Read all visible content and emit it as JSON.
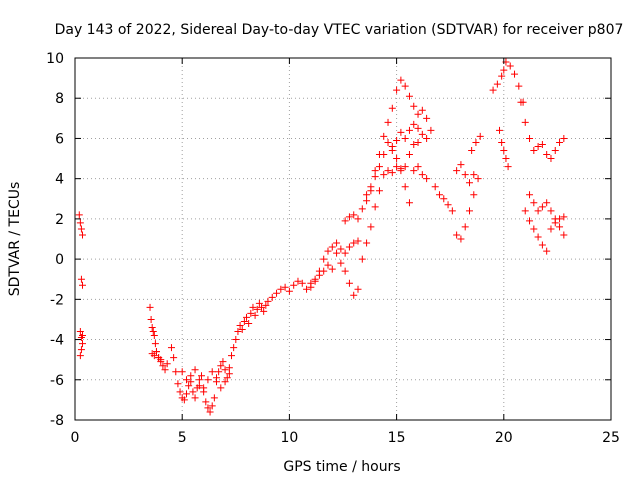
{
  "chart_data": {
    "type": "scatter",
    "title": "Day 143 of 2022, Sidereal Day-to-day VTEC variation (SDTVAR) for receiver p807",
    "xlabel": "GPS time / hours",
    "ylabel": "SDTVAR / TECUs",
    "xlim": [
      0,
      25
    ],
    "ylim": [
      -8,
      10
    ],
    "xticks": [
      "0",
      "5",
      "10",
      "15",
      "20",
      "25"
    ],
    "yticks": [
      "-8",
      "-6",
      "-4",
      "-2",
      "0",
      "2",
      "4",
      "6",
      "8",
      "10"
    ],
    "grid": true,
    "marker": "+",
    "color": "#ff0000",
    "series": [
      {
        "name": "SDTVAR",
        "x": [
          0.2,
          0.25,
          0.3,
          0.35,
          0.3,
          0.35,
          0.25,
          0.3,
          0.35,
          0.3,
          0.25,
          0.35,
          3.5,
          3.55,
          3.6,
          3.65,
          3.7,
          3.75,
          3.8,
          3.9,
          4.0,
          4.1,
          4.2,
          4.3,
          3.6,
          3.7,
          3.8,
          3.9,
          4.0,
          4.5,
          4.6,
          4.7,
          4.8,
          4.9,
          5.0,
          5.1,
          5.2,
          5.3,
          5.4,
          5.5,
          5.6,
          5.7,
          5.8,
          5.9,
          6.0,
          6.1,
          6.2,
          6.3,
          6.4,
          6.5,
          6.6,
          6.7,
          6.8,
          6.9,
          7.0,
          7.1,
          7.2,
          7.3,
          5.0,
          5.2,
          5.4,
          5.6,
          5.8,
          6.0,
          6.2,
          6.4,
          6.6,
          6.8,
          7.0,
          7.2,
          7.4,
          7.5,
          7.6,
          7.7,
          7.8,
          7.9,
          8.0,
          8.1,
          8.2,
          8.3,
          8.4,
          8.5,
          8.6,
          8.7,
          8.8,
          8.9,
          9.0,
          9.2,
          9.4,
          9.6,
          9.8,
          10.0,
          10.2,
          10.4,
          10.6,
          10.8,
          11.0,
          11.2,
          11.4,
          11.6,
          11.8,
          12.0,
          12.2,
          12.4,
          12.6,
          12.8,
          13.0,
          13.2,
          11.0,
          11.2,
          11.4,
          11.6,
          11.8,
          12.0,
          12.2,
          12.4,
          12.6,
          12.8,
          13.0,
          13.2,
          13.4,
          13.6,
          13.8,
          14.0,
          14.2,
          14.4,
          14.6,
          14.8,
          15.0,
          15.2,
          15.4,
          15.6,
          15.8,
          16.0,
          16.2,
          16.4,
          12.6,
          12.8,
          13.0,
          13.2,
          13.4,
          13.6,
          13.8,
          14.0,
          14.2,
          14.4,
          14.6,
          14.8,
          15.0,
          15.2,
          15.4,
          15.6,
          15.8,
          16.0,
          13.6,
          13.8,
          14.0,
          14.2,
          14.4,
          14.6,
          14.8,
          15.0,
          15.2,
          15.4,
          15.6,
          15.8,
          16.0,
          16.2,
          16.4,
          14.8,
          15.0,
          15.2,
          15.4,
          15.6,
          15.8,
          16.0,
          16.2,
          16.4,
          16.6,
          16.8,
          17.0,
          17.2,
          17.4,
          17.6,
          17.8,
          18.0,
          18.2,
          18.4,
          18.6,
          18.8,
          17.8,
          18.0,
          18.2,
          18.4,
          18.6,
          18.5,
          18.7,
          18.9,
          19.5,
          19.7,
          19.9,
          20.0,
          20.1,
          20.3,
          20.5,
          20.7,
          20.9,
          19.8,
          19.9,
          20.0,
          20.1,
          20.2,
          20.8,
          21.0,
          21.2,
          21.4,
          21.6,
          21.8,
          22.0,
          22.2,
          22.4,
          22.6,
          22.8,
          21.0,
          21.2,
          21.4,
          21.6,
          21.8,
          22.0,
          22.2,
          22.4,
          22.6,
          22.8,
          21.2,
          21.4,
          21.6,
          21.8,
          22.0,
          22.2,
          22.4,
          22.6,
          22.8
        ],
        "y": [
          2.2,
          1.8,
          1.5,
          1.2,
          -1.0,
          -1.3,
          -3.6,
          -3.9,
          -4.2,
          -4.5,
          -4.8,
          -3.8,
          -2.4,
          -3.0,
          -3.4,
          -3.6,
          -3.8,
          -4.2,
          -4.6,
          -4.9,
          -5.1,
          -5.3,
          -5.5,
          -5.2,
          -4.7,
          -4.8,
          -4.6,
          -4.9,
          -5.0,
          -4.4,
          -4.9,
          -5.6,
          -6.2,
          -6.6,
          -6.9,
          -7.0,
          -6.7,
          -6.3,
          -6.1,
          -6.6,
          -6.9,
          -6.4,
          -6.0,
          -5.8,
          -6.4,
          -7.1,
          -7.4,
          -7.6,
          -7.3,
          -6.9,
          -6.1,
          -5.6,
          -5.3,
          -5.1,
          -5.5,
          -5.9,
          -5.4,
          -4.8,
          -5.6,
          -6.0,
          -5.8,
          -5.5,
          -6.3,
          -6.6,
          -6.0,
          -5.6,
          -5.9,
          -6.4,
          -6.1,
          -5.7,
          -4.4,
          -4.0,
          -3.6,
          -3.3,
          -3.5,
          -3.1,
          -2.9,
          -3.2,
          -2.7,
          -2.4,
          -2.8,
          -2.5,
          -2.2,
          -2.4,
          -2.6,
          -2.3,
          -2.1,
          -1.9,
          -1.7,
          -1.5,
          -1.4,
          -1.6,
          -1.3,
          -1.1,
          -1.2,
          -1.5,
          -1.2,
          -1.0,
          -0.6,
          0.0,
          0.4,
          0.6,
          0.8,
          0.5,
          0.3,
          0.6,
          0.8,
          0.9,
          -1.4,
          -1.1,
          -0.8,
          -0.6,
          -0.3,
          -0.5,
          0.3,
          -0.2,
          -0.6,
          -1.2,
          -1.8,
          -1.5,
          0.0,
          0.8,
          1.6,
          2.6,
          3.4,
          4.2,
          4.4,
          4.3,
          4.6,
          4.5,
          3.6,
          2.8,
          4.4,
          4.6,
          4.2,
          4.0,
          1.9,
          2.1,
          2.2,
          2.0,
          2.5,
          2.9,
          3.4,
          4.1,
          4.6,
          5.2,
          5.8,
          5.4,
          5.0,
          4.4,
          4.6,
          5.2,
          5.7,
          5.8,
          3.2,
          3.6,
          4.4,
          5.2,
          6.1,
          6.8,
          7.5,
          8.4,
          8.9,
          8.6,
          8.1,
          7.6,
          7.2,
          7.4,
          7.0,
          5.6,
          5.9,
          6.3,
          6.0,
          6.4,
          6.7,
          6.5,
          6.2,
          6.0,
          6.4,
          3.6,
          3.2,
          3.0,
          2.7,
          2.4,
          1.2,
          1.0,
          1.6,
          2.4,
          3.2,
          4.0,
          4.4,
          4.7,
          4.2,
          3.8,
          4.2,
          5.4,
          5.8,
          6.1,
          8.4,
          8.7,
          9.1,
          9.4,
          9.8,
          9.6,
          9.2,
          8.6,
          7.8,
          6.4,
          5.8,
          5.4,
          5.0,
          4.6,
          7.8,
          6.8,
          6.0,
          5.4,
          5.6,
          5.7,
          5.2,
          5.0,
          5.4,
          5.8,
          6.0,
          2.4,
          1.9,
          1.5,
          1.1,
          0.7,
          0.4,
          1.5,
          1.8,
          2.0,
          2.1,
          3.2,
          2.8,
          2.4,
          2.6,
          2.8,
          2.4,
          2.0,
          1.6,
          1.2
        ]
      }
    ]
  }
}
